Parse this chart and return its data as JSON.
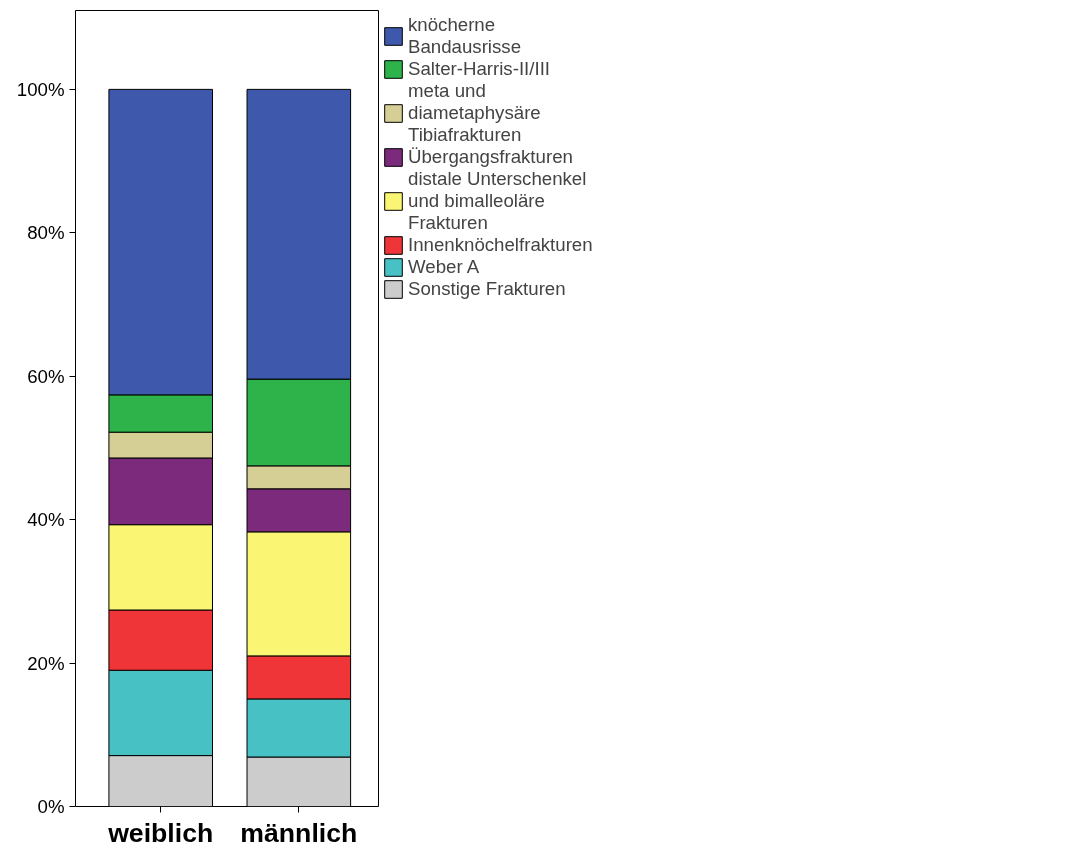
{
  "chart_data": {
    "type": "bar",
    "stacked": true,
    "categories": [
      "weiblich",
      "männlich"
    ],
    "ylim": [
      0,
      111
    ],
    "yticks": [
      {
        "value": 0,
        "label": "0%"
      },
      {
        "value": 20,
        "label": "20%"
      },
      {
        "value": 40,
        "label": "40%"
      },
      {
        "value": 60,
        "label": "60%"
      },
      {
        "value": 80,
        "label": "80%"
      },
      {
        "value": 100,
        "label": "100%"
      }
    ],
    "grid": false,
    "legend": "right",
    "series": [
      {
        "name": "Sonstige Frakturen",
        "color": "#cccccc",
        "values": [
          7.1,
          6.9
        ]
      },
      {
        "name": "Weber A",
        "color": "#48c1c5",
        "values": [
          11.9,
          8.1
        ]
      },
      {
        "name": "Innenknöchelfrakturen",
        "color": "#ef3538",
        "values": [
          8.4,
          6.0
        ]
      },
      {
        "name": "distale Unterschenkel und bimalleoläre Frakturen",
        "color": "#faf573",
        "values": [
          11.9,
          17.3
        ]
      },
      {
        "name": "Übergangsfrakturen",
        "color": "#7b2a7c",
        "values": [
          9.3,
          6.0
        ]
      },
      {
        "name": "meta und diametaphysäre Tibiafrakturen",
        "color": "#d5ce95",
        "values": [
          3.6,
          3.2
        ]
      },
      {
        "name": "Salter-Harris-II/III",
        "color": "#2db34a",
        "values": [
          5.2,
          12.1
        ]
      },
      {
        "name": "knöcherne Bandausrisse",
        "color": "#3e58ac",
        "values": [
          42.6,
          40.4
        ]
      }
    ]
  }
}
